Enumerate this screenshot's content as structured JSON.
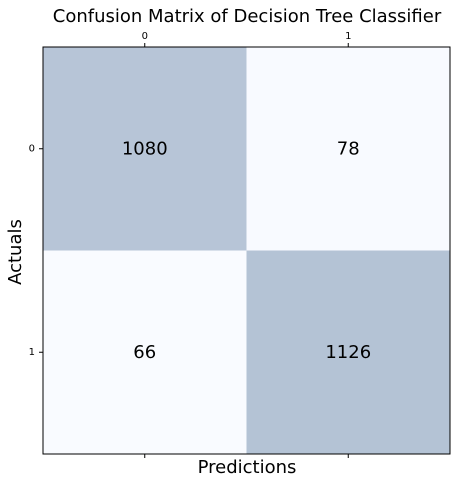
{
  "chart_data": {
    "type": "heatmap",
    "title": "Confusion Matrix of Decision Tree Classifier",
    "xlabel": "Predictions",
    "ylabel": "Actuals",
    "x_categories": [
      "0",
      "1"
    ],
    "y_categories": [
      "0",
      "1"
    ],
    "values": [
      [
        1080,
        78
      ],
      [
        66,
        1126
      ]
    ],
    "xaxis_position": "top",
    "grid": false,
    "colors": {
      "high": "#b4c3d5",
      "low": "#f9fbff",
      "border": "#000000"
    }
  }
}
